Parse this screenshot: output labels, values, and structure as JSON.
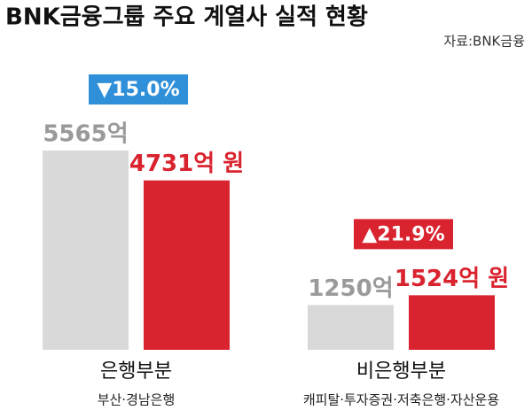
{
  "chart_data": {
    "type": "bar",
    "title": "BNK금융그룹 주요 계열사 실적 현황",
    "source": "자료:BNK금융",
    "categories": [
      "은행부분",
      "비은행부분"
    ],
    "category_notes": [
      "부산·경남은행",
      "캐피탈·투자증권·저축은행·자산운용"
    ],
    "annotations": [
      "▼15.0%",
      "▲21.9%"
    ],
    "series": [
      {
        "color": "#d9d9d9",
        "label_color": "#9a9a9a",
        "values": [
          5565,
          1250
        ],
        "value_labels": [
          "5565억",
          "1250억"
        ]
      },
      {
        "color": "#d9232e",
        "label_color": "#d9232e",
        "values": [
          4731,
          1524
        ],
        "value_labels": [
          "4731억 원",
          "1524억 원"
        ]
      }
    ],
    "annotation_colors": [
      "#2f8fd8",
      "#d9232e"
    ]
  }
}
